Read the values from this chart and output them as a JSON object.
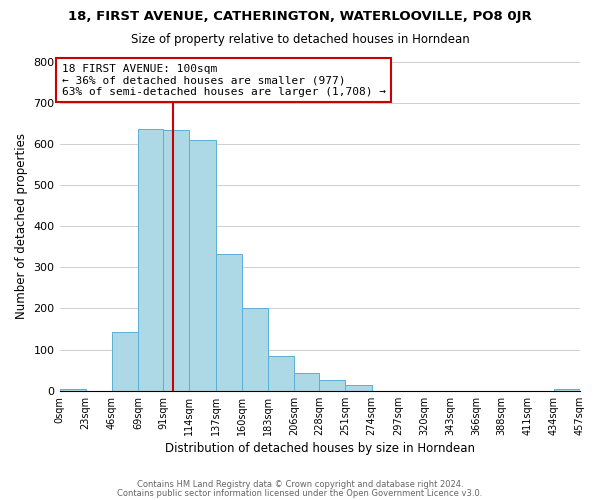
{
  "title1": "18, FIRST AVENUE, CATHERINGTON, WATERLOOVILLE, PO8 0JR",
  "title2": "Size of property relative to detached houses in Horndean",
  "xlabel": "Distribution of detached houses by size in Horndean",
  "ylabel": "Number of detached properties",
  "bar_left_edges": [
    0,
    23,
    46,
    69,
    91,
    114,
    137,
    160,
    183,
    206,
    228,
    251,
    274,
    297,
    320,
    343,
    366,
    388,
    411,
    434
  ],
  "bar_widths": [
    23,
    23,
    23,
    22,
    23,
    23,
    23,
    23,
    23,
    22,
    23,
    23,
    23,
    23,
    23,
    23,
    22,
    23,
    23,
    23
  ],
  "bar_heights": [
    5,
    0,
    143,
    635,
    633,
    609,
    333,
    200,
    84,
    43,
    27,
    13,
    0,
    0,
    0,
    0,
    0,
    0,
    0,
    5
  ],
  "bar_color": "#add8e6",
  "bar_edge_color": "#5bafd6",
  "tick_labels": [
    "0sqm",
    "23sqm",
    "46sqm",
    "69sqm",
    "91sqm",
    "114sqm",
    "137sqm",
    "160sqm",
    "183sqm",
    "206sqm",
    "228sqm",
    "251sqm",
    "274sqm",
    "297sqm",
    "320sqm",
    "343sqm",
    "366sqm",
    "388sqm",
    "411sqm",
    "434sqm",
    "457sqm"
  ],
  "ylim": [
    0,
    800
  ],
  "yticks": [
    0,
    100,
    200,
    300,
    400,
    500,
    600,
    700,
    800
  ],
  "vline_x": 100,
  "vline_color": "#cc0000",
  "annotation_line1": "18 FIRST AVENUE: 100sqm",
  "annotation_line2": "← 36% of detached houses are smaller (977)",
  "annotation_line3": "63% of semi-detached houses are larger (1,708) →",
  "annotation_box_color": "#ffffff",
  "annotation_box_edge": "#cc0000",
  "footer1": "Contains HM Land Registry data © Crown copyright and database right 2024.",
  "footer2": "Contains public sector information licensed under the Open Government Licence v3.0.",
  "background_color": "#ffffff",
  "grid_color": "#d0d0d0"
}
